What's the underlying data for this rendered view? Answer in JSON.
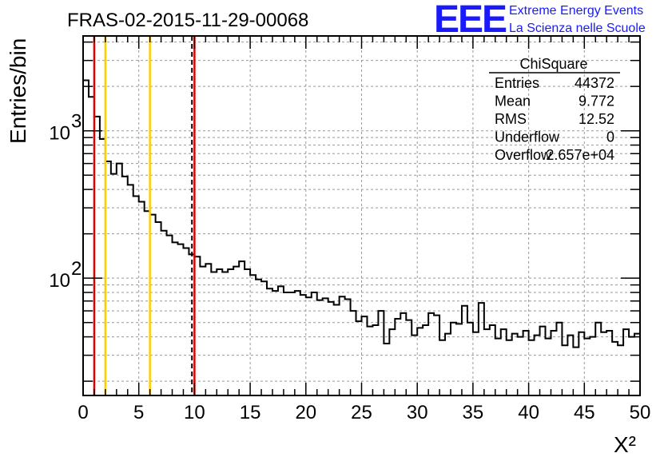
{
  "header": {
    "run_title": "FRAS-02-2015-11-29-00068",
    "logo_text": "EEE",
    "logo_line1": "Extreme Energy Events",
    "logo_line2": "La Scienza nelle Scuole"
  },
  "stats_box": {
    "title": "ChiSquare",
    "rows": [
      {
        "label": "Entries",
        "value": "44372"
      },
      {
        "label": "Mean",
        "value": "9.772"
      },
      {
        "label": "RMS",
        "value": "12.52"
      },
      {
        "label": "Underflow",
        "value": "0"
      },
      {
        "label": "Overflow",
        "value": "2.657e+04"
      }
    ]
  },
  "colors": {
    "red": "#e00000",
    "orange": "#ffcc00",
    "grid": "#999999",
    "hist": "#000000"
  },
  "chart_data": {
    "type": "histogram",
    "xlabel": "X²",
    "ylabel": "Entries/bin",
    "xlim": [
      0,
      50
    ],
    "ylim": [
      16,
      4400
    ],
    "yscale": "log",
    "bin_width": 0.5,
    "x_ticks": [
      0,
      5,
      10,
      15,
      20,
      25,
      30,
      35,
      40,
      45,
      50
    ],
    "x_tick_labels": [
      "0",
      "5",
      "10",
      "15",
      "20",
      "25",
      "30",
      "35",
      "40",
      "45",
      "50"
    ],
    "y_major_ticks": [
      100,
      1000
    ],
    "y_tick_labels": [
      {
        "base": "10",
        "exp": "2"
      },
      {
        "base": "10",
        "exp": "3"
      }
    ],
    "grid": true,
    "vertical_lines": [
      {
        "x": 1,
        "color": "red",
        "style": "solid"
      },
      {
        "x": 2,
        "color": "orange",
        "style": "solid"
      },
      {
        "x": 6,
        "color": "orange",
        "style": "solid"
      },
      {
        "x": 9.772,
        "color": "black",
        "style": "dashed"
      },
      {
        "x": 10,
        "color": "red",
        "style": "solid"
      }
    ],
    "values": [
      2200,
      1700,
      1250,
      880,
      620,
      510,
      600,
      490,
      430,
      360,
      330,
      285,
      270,
      240,
      210,
      195,
      175,
      170,
      160,
      145,
      140,
      120,
      125,
      110,
      115,
      110,
      115,
      120,
      130,
      115,
      105,
      98,
      95,
      85,
      82,
      88,
      80,
      80,
      82,
      77,
      74,
      80,
      71,
      73,
      69,
      66,
      75,
      72,
      60,
      51,
      55,
      47,
      48,
      60,
      36,
      45,
      53,
      58,
      52,
      41,
      46,
      48,
      58,
      56,
      38,
      42,
      50,
      49,
      65,
      50,
      43,
      68,
      45,
      48,
      39,
      45,
      38,
      42,
      40,
      44,
      38,
      41,
      47,
      39,
      44,
      50,
      35,
      41,
      34,
      43,
      39,
      40,
      50,
      43,
      44,
      37,
      35,
      45,
      40,
      42
    ]
  }
}
